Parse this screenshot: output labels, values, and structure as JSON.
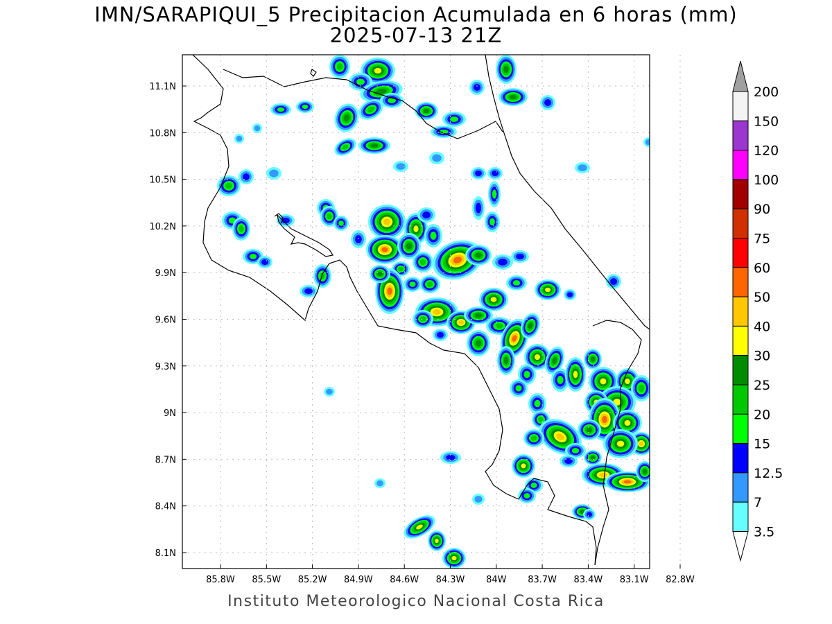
{
  "title": "IMN/SARAPIQUI_5 Precipitacion Acumulada en 6 horas (mm)",
  "subtitle": "2025-07-13 21Z",
  "footer": "Instituto Meteorologico Nacional Costa Rica",
  "axes": {
    "lon_ticks": [
      "85.8W",
      "85.5W",
      "85.2W",
      "84.9W",
      "84.6W",
      "84.3W",
      "84W",
      "83.7W",
      "83.4W",
      "83.1W",
      "82.8W"
    ],
    "lat_ticks": [
      "11.1N",
      "10.8N",
      "10.5N",
      "10.2N",
      "9.9N",
      "9.6N",
      "9.3N",
      "9N",
      "8.7N",
      "8.4N",
      "8.1N"
    ]
  },
  "colorbar": {
    "labels": [
      "200",
      "150",
      "120",
      "100",
      "90",
      "75",
      "60",
      "50",
      "40",
      "30",
      "25",
      "20",
      "15",
      "12.5",
      "7",
      "3.5"
    ],
    "colors": [
      "#f4f4f4",
      "#9b37cf",
      "#ff00ff",
      "#a00000",
      "#d03000",
      "#ff0000",
      "#ff6600",
      "#ffc800",
      "#ffff00",
      "#008c00",
      "#00c800",
      "#00ff00",
      "#0000ff",
      "#3399ff",
      "#66ffff"
    ],
    "top_triangle_color": "#a0a0a0",
    "bottom_triangle_color": "#ffffff"
  },
  "legend_palette": {
    "3.5": "#66ffff",
    "7": "#3399ff",
    "12.5": "#0000ff",
    "15": "#00ff00",
    "20": "#00c800",
    "25": "#008c00",
    "30": "#ffff00",
    "40": "#ffc800",
    "50": "#ff6600",
    "60": "#ff0000"
  }
}
